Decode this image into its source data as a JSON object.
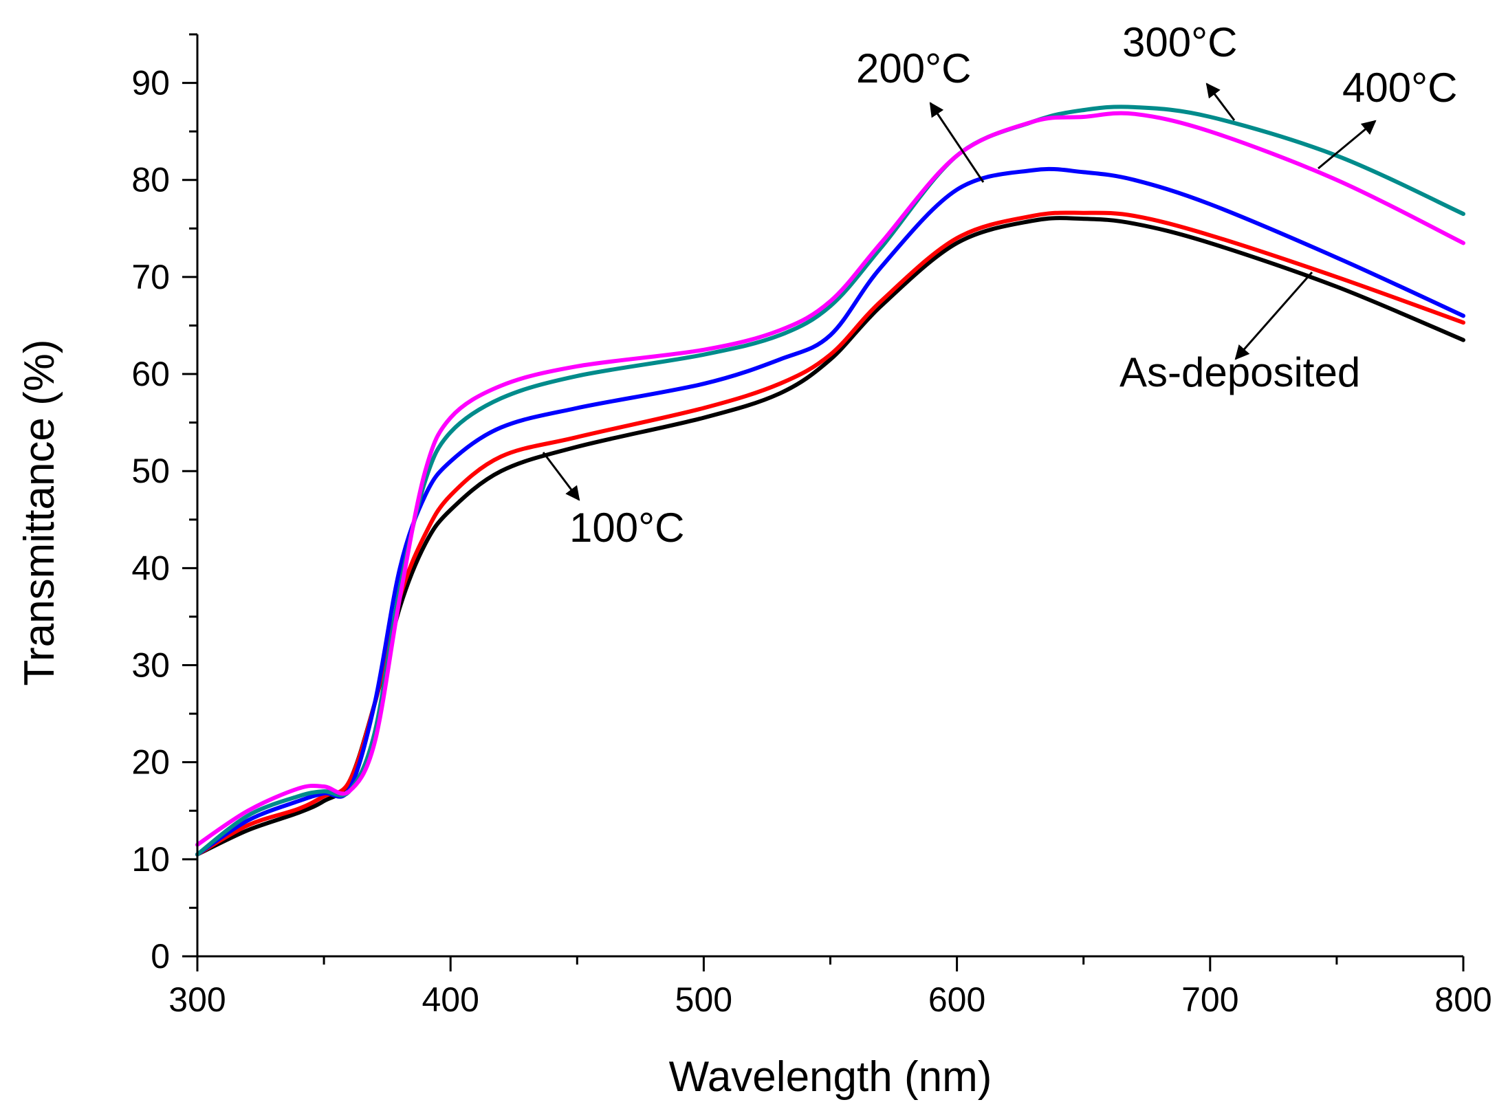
{
  "chart_data": {
    "type": "line",
    "xlabel": "Wavelength (nm)",
    "ylabel": "Transmittance (%)",
    "xlim": [
      300,
      800
    ],
    "ylim": [
      0,
      95
    ],
    "xticks": [
      300,
      400,
      500,
      600,
      700,
      800
    ],
    "yticks": [
      0,
      10,
      20,
      30,
      40,
      50,
      60,
      70,
      80,
      90
    ],
    "grid": false,
    "legend": "none",
    "x": [
      300,
      320,
      340,
      350,
      360,
      370,
      380,
      390,
      400,
      420,
      450,
      500,
      530,
      550,
      570,
      600,
      630,
      650,
      670,
      700,
      750,
      800
    ],
    "series": [
      {
        "name": "As-deposited",
        "color": "#000000",
        "values": [
          10.5,
          13.0,
          14.8,
          16.0,
          18.0,
          26.0,
          36.0,
          42.5,
          46.0,
          50.0,
          52.5,
          55.5,
          58.0,
          61.5,
          67.0,
          73.5,
          75.8,
          76.0,
          75.5,
          73.5,
          69.0,
          63.5
        ]
      },
      {
        "name": "100°C",
        "color": "#ff0000",
        "values": [
          10.5,
          13.5,
          15.2,
          16.5,
          18.0,
          26.0,
          37.0,
          43.5,
          47.5,
          51.5,
          53.5,
          56.5,
          59.0,
          62.0,
          67.5,
          74.0,
          76.3,
          76.6,
          76.3,
          74.3,
          70.0,
          65.3
        ]
      },
      {
        "name": "200°C",
        "color": "#0000ff",
        "values": [
          10.5,
          14.0,
          16.0,
          16.8,
          17.2,
          26.0,
          40.0,
          47.5,
          51.0,
          54.5,
          56.5,
          59.0,
          61.5,
          64.0,
          71.0,
          79.0,
          81.0,
          80.8,
          80.0,
          77.5,
          72.0,
          66.0
        ]
      },
      {
        "name": "300°C",
        "color": "#008b8b",
        "values": [
          10.5,
          14.5,
          16.5,
          17.0,
          17.0,
          23.0,
          38.0,
          49.0,
          54.0,
          57.5,
          59.8,
          62.0,
          64.0,
          67.0,
          73.0,
          82.5,
          86.0,
          87.2,
          87.5,
          86.5,
          82.5,
          76.5
        ]
      },
      {
        "name": "400°C",
        "color": "#ff00ff",
        "values": [
          11.5,
          15.0,
          17.3,
          17.5,
          17.0,
          22.0,
          37.0,
          50.0,
          55.5,
          58.8,
          60.8,
          62.5,
          64.5,
          67.5,
          73.5,
          82.5,
          86.0,
          86.5,
          86.8,
          85.0,
          80.0,
          73.5
        ]
      }
    ],
    "annotations": [
      {
        "text": "200°C"
      },
      {
        "text": "300°C"
      },
      {
        "text": "400°C"
      },
      {
        "text": "As-deposited"
      },
      {
        "text": "100°C"
      }
    ]
  }
}
